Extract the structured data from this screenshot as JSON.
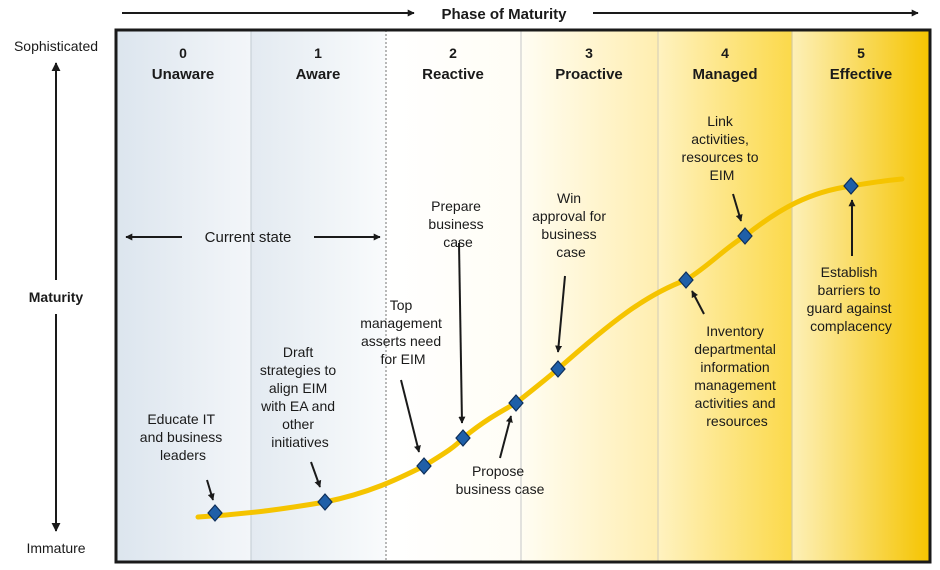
{
  "title": "Phase of Maturity",
  "y_axis": {
    "top": "Sophisticated",
    "middle": "Maturity",
    "bottom": "Immature"
  },
  "phases": [
    {
      "number": "0",
      "name": "Unaware"
    },
    {
      "number": "1",
      "name": "Aware"
    },
    {
      "number": "2",
      "name": "Reactive"
    },
    {
      "number": "3",
      "name": "Proactive"
    },
    {
      "number": "4",
      "name": "Managed"
    },
    {
      "number": "5",
      "name": "Effective"
    }
  ],
  "current_state": "Current state",
  "milestones": [
    {
      "lines": [
        "Educate IT",
        "and business",
        "leaders"
      ]
    },
    {
      "lines": [
        "Draft",
        "strategies to",
        "align EIM",
        "with EA and",
        "other",
        "initiatives"
      ]
    },
    {
      "lines": [
        "Top",
        "management",
        "asserts need",
        "for EIM"
      ]
    },
    {
      "lines": [
        "Prepare",
        "business",
        "case"
      ]
    },
    {
      "lines": [
        "Propose",
        "business case"
      ]
    },
    {
      "lines": [
        "Win",
        "approval for",
        "business",
        "case"
      ]
    },
    {
      "lines": [
        "Inventory",
        "departmental",
        "information",
        "management",
        "activities and",
        "resources"
      ]
    },
    {
      "lines": [
        "Link",
        "activities,",
        "resources to",
        "EIM"
      ]
    },
    {
      "lines": [
        "Establish",
        "barriers to",
        "guard against",
        "complacency"
      ]
    }
  ],
  "colors": {
    "curve": "#f5c400",
    "marker": "#1f5fa8",
    "marker_stroke": "#0e2f5a",
    "phase_dark": "#f5c400",
    "phase_light": "#dde6ef"
  }
}
